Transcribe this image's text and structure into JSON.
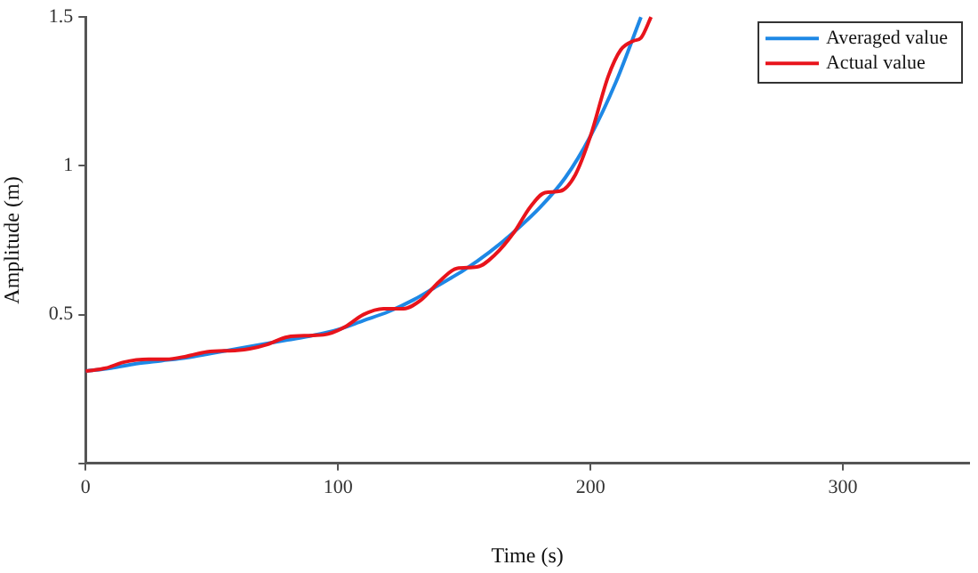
{
  "chart_data": {
    "type": "line",
    "xlabel": "Time (s)",
    "ylabel": "Amplitude (m)",
    "xlim": [
      0,
      350
    ],
    "xticks": [
      0,
      100,
      200,
      300
    ],
    "ylim": [
      0,
      1.5
    ],
    "yticks": [
      {
        "value": 0,
        "label": null
      },
      0.5,
      1,
      1.5
    ],
    "grid": false,
    "legend": "top right",
    "marker": "none",
    "line_style": "solid",
    "series": [
      {
        "name": "Averaged value",
        "color": "#1e88e5",
        "x": [
          0,
          10,
          20,
          30,
          40,
          50,
          60,
          70,
          80,
          90,
          100,
          110,
          120,
          130,
          140,
          150,
          160,
          170,
          180,
          190,
          200,
          210,
          220
        ],
        "values": [
          0.31,
          0.32,
          0.335,
          0.345,
          0.355,
          0.37,
          0.385,
          0.4,
          0.415,
          0.43,
          0.45,
          0.48,
          0.51,
          0.55,
          0.6,
          0.65,
          0.71,
          0.78,
          0.86,
          0.96,
          1.1,
          1.28,
          1.5
        ]
      },
      {
        "name": "Actual value",
        "color": "#e8141c",
        "x": [
          0,
          8,
          15,
          25,
          32,
          40,
          48,
          60,
          65,
          72,
          80,
          90,
          96,
          103,
          110,
          118,
          126,
          133,
          140,
          147,
          155,
          162,
          170,
          176,
          182,
          188,
          194,
          200,
          207,
          212,
          217,
          220,
          224
        ],
        "values": [
          0.31,
          0.32,
          0.34,
          0.35,
          0.35,
          0.36,
          0.375,
          0.38,
          0.385,
          0.4,
          0.425,
          0.43,
          0.435,
          0.46,
          0.5,
          0.52,
          0.52,
          0.55,
          0.61,
          0.655,
          0.66,
          0.7,
          0.78,
          0.86,
          0.91,
          0.915,
          0.97,
          1.1,
          1.3,
          1.39,
          1.42,
          1.43,
          1.5
        ]
      }
    ]
  }
}
